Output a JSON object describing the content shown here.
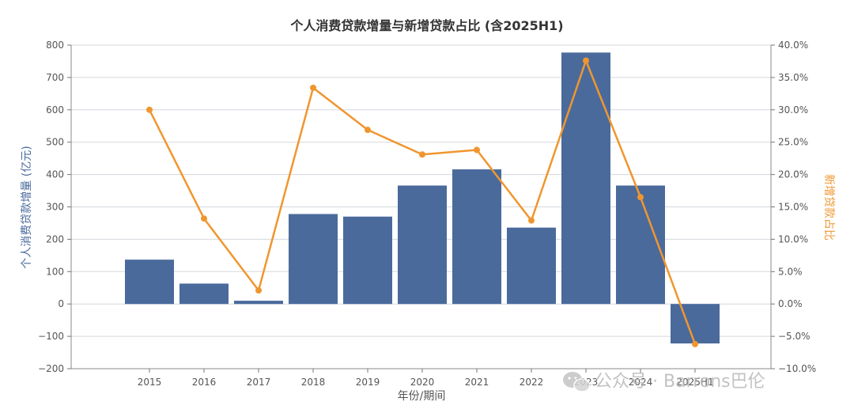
{
  "chart_data": {
    "type": "bar+line",
    "title": "个人消费贷款增量与新增贷款占比 (含2025H1)",
    "xlabel": "年份/期间",
    "ylabel_left": "个人消费贷款增量 (亿元)",
    "ylabel_right": "新增贷款占比",
    "categories": [
      "2015",
      "2016",
      "2017",
      "2018",
      "2019",
      "2020",
      "2021",
      "2022",
      "2023",
      "2024",
      "2025H1"
    ],
    "series": [
      {
        "type": "bar",
        "axis": "left",
        "color": "#4a6a9c",
        "values": [
          137,
          63,
          10,
          278,
          270,
          366,
          416,
          236,
          777,
          366,
          -122
        ]
      },
      {
        "type": "line",
        "axis": "right",
        "color": "#f0962f",
        "values": [
          30.0,
          13.2,
          2.1,
          33.4,
          26.9,
          23.1,
          23.8,
          12.9,
          37.6,
          16.5,
          -6.2
        ]
      }
    ],
    "ylim_left": [
      -200,
      800
    ],
    "yticks_left": [
      "800",
      "700",
      "600",
      "500",
      "400",
      "300",
      "200",
      "100",
      "0",
      "−100",
      "−200"
    ],
    "ylim_right": [
      -10,
      40
    ],
    "yticks_right": [
      "40.0%",
      "35.0%",
      "30.0%",
      "25.0%",
      "20.0%",
      "15.0%",
      "10.0%",
      "5.0%",
      "0.0%",
      "−5.0%",
      "−10.0%"
    ],
    "grid": true,
    "legend": "none"
  },
  "watermark": {
    "icon": "wechat-icon",
    "text": "公众号 · Barrons巴伦"
  }
}
